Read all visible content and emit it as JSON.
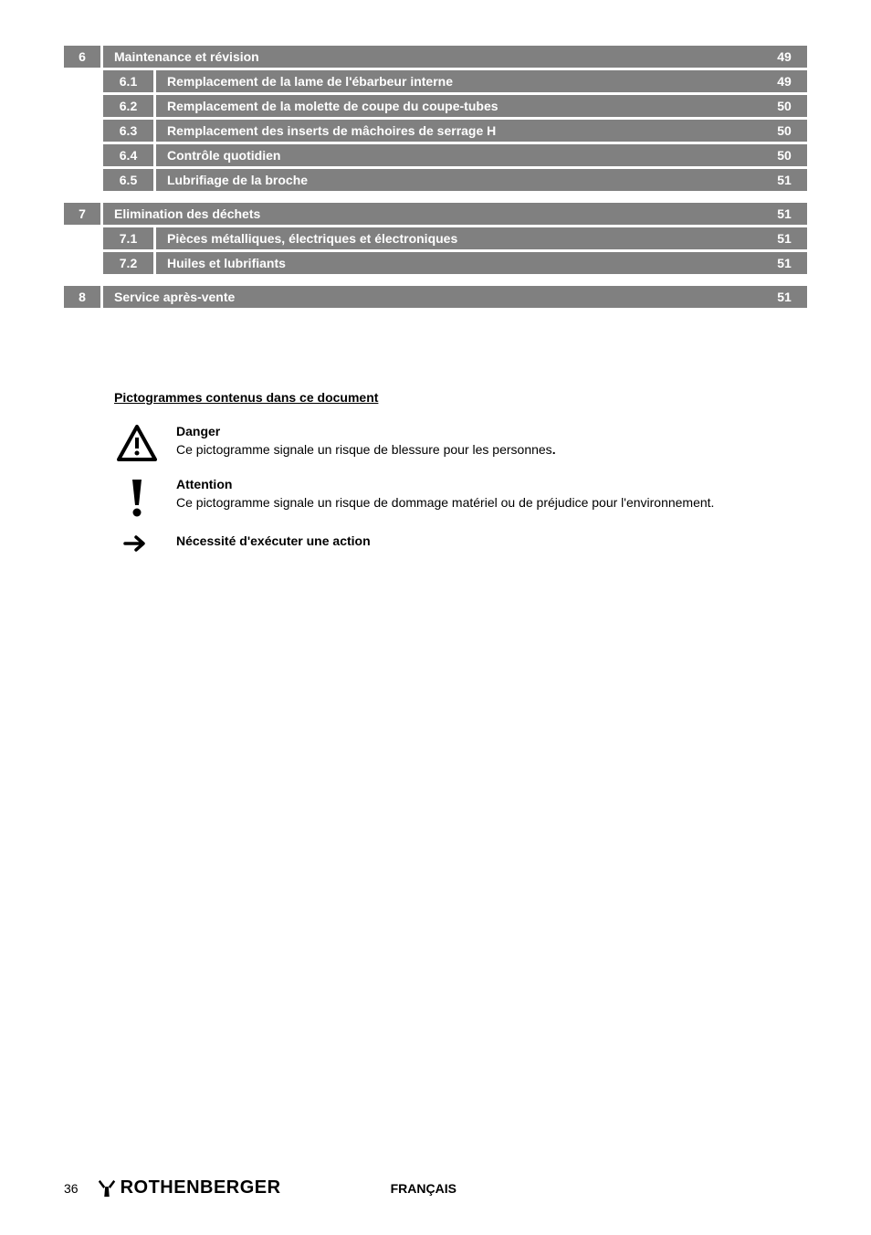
{
  "toc": [
    {
      "type": "main",
      "num": "6",
      "title": "Maintenance et révision",
      "page": "49"
    },
    {
      "type": "sub",
      "num": "6.1",
      "title": "Remplacement de la lame de l'ébarbeur interne",
      "page": "49"
    },
    {
      "type": "sub",
      "num": "6.2",
      "title": "Remplacement de la molette de coupe du coupe-tubes",
      "page": "50"
    },
    {
      "type": "sub",
      "num": "6.3",
      "title": "Remplacement des inserts de mâchoires de serrage  H",
      "page": "50"
    },
    {
      "type": "sub",
      "num": "6.4",
      "title": "Contrôle quotidien",
      "page": "50"
    },
    {
      "type": "sub",
      "num": "6.5",
      "title": "Lubrifiage de la broche",
      "page": "51"
    },
    {
      "type": "main",
      "num": "7",
      "title": "Elimination des déchets",
      "page": "51"
    },
    {
      "type": "sub",
      "num": "7.1",
      "title": "Pièces métalliques, électriques et électroniques",
      "page": "51"
    },
    {
      "type": "sub",
      "num": "7.2",
      "title": "Huiles et lubrifiants",
      "page": "51"
    },
    {
      "type": "main",
      "num": "8",
      "title": "Service après-vente",
      "page": "51"
    }
  ],
  "toc_colors": {
    "row_bg": "#808080",
    "row_text": "#ffffff",
    "font_size": 14,
    "font_weight": "bold"
  },
  "picto": {
    "heading": "Pictogrammes contenus dans ce document",
    "items": [
      {
        "icon": "warning-triangle",
        "title": "Danger",
        "desc": "Ce pictogramme signale un risque de blessure pour les personnes.",
        "desc_trailing_bold": true
      },
      {
        "icon": "exclamation",
        "title": "Attention",
        "desc": "Ce pictogramme signale un risque de dommage matériel ou de préjudice pour l'environnement."
      },
      {
        "icon": "arrow-right",
        "title": "Nécessité d'exécuter une action",
        "desc": ""
      }
    ]
  },
  "footer": {
    "page_number": "36",
    "brand": "ROTHENBERGER",
    "language": "FRANÇAIS"
  }
}
